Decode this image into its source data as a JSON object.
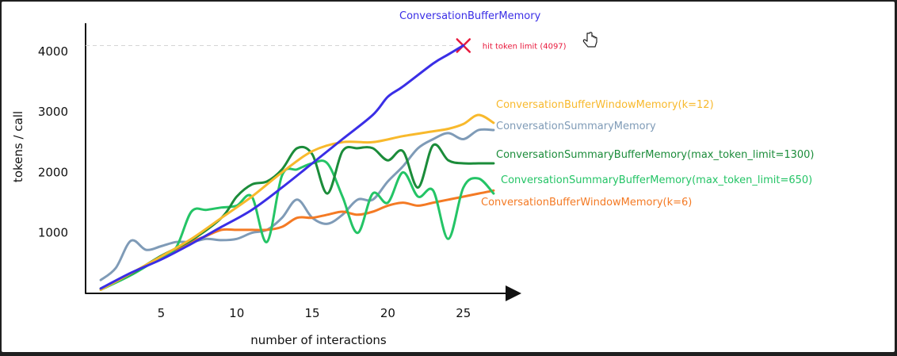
{
  "chart_data": {
    "type": "line",
    "xlabel": "number of interactions",
    "ylabel": "tokens / call",
    "xlim": [
      0,
      28
    ],
    "ylim": [
      0,
      4300
    ],
    "x_ticks": [
      5,
      10,
      15,
      20,
      25
    ],
    "y_ticks": [
      1000,
      2000,
      3000,
      4000
    ],
    "grid": false,
    "limit_line": {
      "y": 4097,
      "label": "hit token limit (4097)",
      "marker": "x",
      "color": "#e8193c"
    },
    "series": [
      {
        "name": "ConversationBufferMemory",
        "color": "#3a2ee6",
        "label_pos": "top",
        "points": [
          [
            1,
            80
          ],
          [
            3,
            340
          ],
          [
            5,
            560
          ],
          [
            7,
            820
          ],
          [
            9,
            1100
          ],
          [
            11,
            1380
          ],
          [
            13,
            1750
          ],
          [
            15,
            2150
          ],
          [
            17,
            2550
          ],
          [
            19,
            2950
          ],
          [
            20,
            3250
          ],
          [
            21,
            3420
          ],
          [
            23,
            3800
          ],
          [
            24,
            3950
          ],
          [
            25,
            4100
          ]
        ]
      },
      {
        "name": "ConversationBufferWindowMemory(k=12)",
        "color": "#f8b92c",
        "points": [
          [
            1,
            60
          ],
          [
            3,
            330
          ],
          [
            5,
            610
          ],
          [
            7,
            900
          ],
          [
            9,
            1250
          ],
          [
            11,
            1600
          ],
          [
            13,
            2000
          ],
          [
            15,
            2350
          ],
          [
            17,
            2500
          ],
          [
            19,
            2500
          ],
          [
            21,
            2600
          ],
          [
            23,
            2680
          ],
          [
            24,
            2720
          ],
          [
            25,
            2800
          ],
          [
            26,
            2950
          ],
          [
            27,
            2820
          ]
        ]
      },
      {
        "name": "ConversationSummaryMemory",
        "color": "#7f9bb7",
        "points": [
          [
            1,
            220
          ],
          [
            2,
            420
          ],
          [
            3,
            870
          ],
          [
            4,
            720
          ],
          [
            5,
            780
          ],
          [
            6,
            850
          ],
          [
            7,
            850
          ],
          [
            8,
            900
          ],
          [
            9,
            880
          ],
          [
            10,
            900
          ],
          [
            11,
            1000
          ],
          [
            12,
            1050
          ],
          [
            13,
            1250
          ],
          [
            14,
            1550
          ],
          [
            15,
            1250
          ],
          [
            16,
            1150
          ],
          [
            17,
            1300
          ],
          [
            18,
            1550
          ],
          [
            19,
            1550
          ],
          [
            20,
            1850
          ],
          [
            21,
            2100
          ],
          [
            22,
            2400
          ],
          [
            23,
            2550
          ],
          [
            24,
            2650
          ],
          [
            25,
            2550
          ],
          [
            26,
            2700
          ],
          [
            27,
            2700
          ]
        ]
      },
      {
        "name": "ConversationSummaryBufferMemory(max_token_limit=1300)",
        "color": "#1b8c3a",
        "points": [
          [
            1,
            80
          ],
          [
            3,
            320
          ],
          [
            5,
            620
          ],
          [
            7,
            880
          ],
          [
            9,
            1250
          ],
          [
            10,
            1600
          ],
          [
            11,
            1800
          ],
          [
            12,
            1850
          ],
          [
            13,
            2050
          ],
          [
            14,
            2400
          ],
          [
            15,
            2300
          ],
          [
            16,
            1650
          ],
          [
            17,
            2350
          ],
          [
            18,
            2400
          ],
          [
            19,
            2400
          ],
          [
            20,
            2200
          ],
          [
            21,
            2350
          ],
          [
            22,
            1750
          ],
          [
            23,
            2450
          ],
          [
            24,
            2200
          ],
          [
            25,
            2150
          ],
          [
            26,
            2150
          ],
          [
            27,
            2150
          ]
        ]
      },
      {
        "name": "ConversationSummaryBufferMemory(max_token_limit=650)",
        "color": "#24c466",
        "points": [
          [
            1,
            60
          ],
          [
            3,
            300
          ],
          [
            5,
            600
          ],
          [
            6,
            760
          ],
          [
            7,
            1350
          ],
          [
            8,
            1380
          ],
          [
            9,
            1420
          ],
          [
            10,
            1450
          ],
          [
            11,
            1600
          ],
          [
            12,
            850
          ],
          [
            13,
            1950
          ],
          [
            14,
            2050
          ],
          [
            15,
            2150
          ],
          [
            16,
            2150
          ],
          [
            17,
            1600
          ],
          [
            18,
            1000
          ],
          [
            19,
            1650
          ],
          [
            20,
            1500
          ],
          [
            21,
            2000
          ],
          [
            22,
            1600
          ],
          [
            23,
            1700
          ],
          [
            24,
            900
          ],
          [
            25,
            1750
          ],
          [
            26,
            1900
          ],
          [
            27,
            1650
          ]
        ]
      },
      {
        "name": "ConversationBufferWindowMemory(k=6)",
        "color": "#f47a24",
        "points": [
          [
            1,
            60
          ],
          [
            3,
            330
          ],
          [
            5,
            590
          ],
          [
            7,
            850
          ],
          [
            8,
            950
          ],
          [
            9,
            1050
          ],
          [
            10,
            1050
          ],
          [
            11,
            1050
          ],
          [
            12,
            1050
          ],
          [
            13,
            1100
          ],
          [
            14,
            1250
          ],
          [
            15,
            1250
          ],
          [
            16,
            1300
          ],
          [
            17,
            1350
          ],
          [
            18,
            1300
          ],
          [
            19,
            1350
          ],
          [
            20,
            1450
          ],
          [
            21,
            1500
          ],
          [
            22,
            1450
          ],
          [
            23,
            1500
          ],
          [
            24,
            1550
          ],
          [
            25,
            1600
          ],
          [
            26,
            1650
          ],
          [
            27,
            1700
          ]
        ]
      }
    ]
  }
}
